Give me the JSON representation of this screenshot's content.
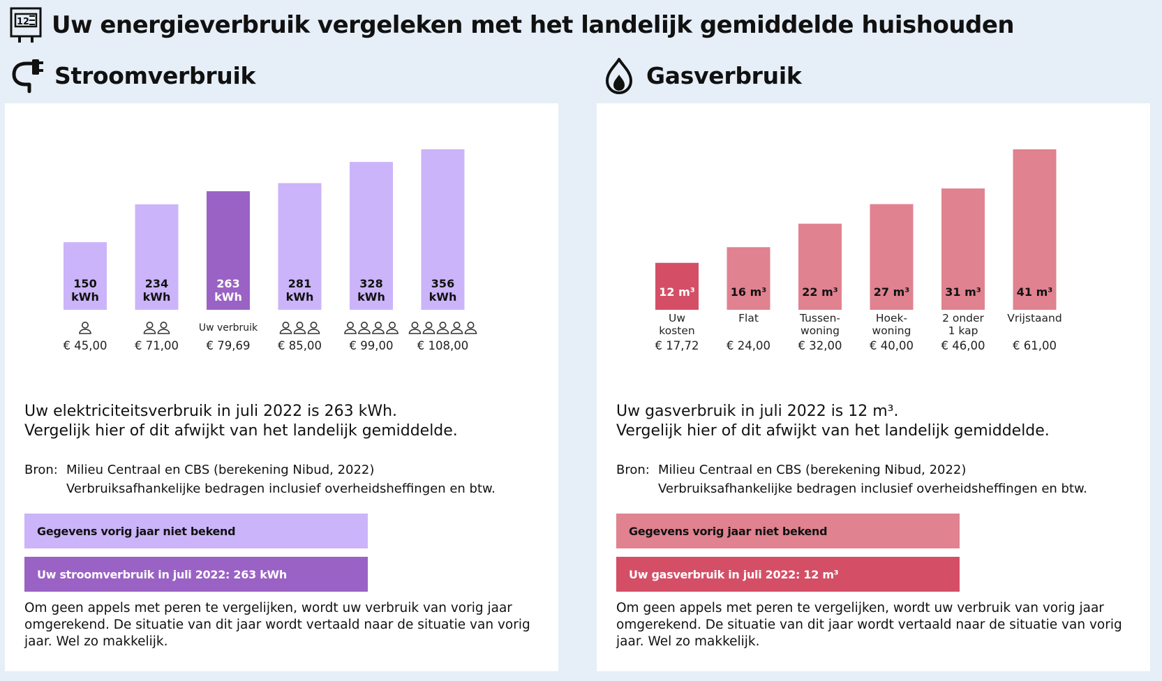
{
  "header": {
    "title": "Uw energieverbruik vergeleken met het landelijk gemiddelde huishouden",
    "icon": "meter-icon"
  },
  "colors": {
    "stroom_light": "#cbb4f9",
    "stroom_dark": "#9a62c4",
    "gas_light": "#e08290",
    "gas_dark": "#d44f66",
    "background": "#e6eef7"
  },
  "stroom": {
    "title": "Stroomverbruik",
    "icon": "plug-icon",
    "summary_line1": "Uw elektriciteitsverbruik in juli 2022 is 263 kWh.",
    "summary_line2": "Vergelijk hier of dit afwijkt van het landelijk gemiddelde.",
    "source_label": "Bron:",
    "source_line1": "Milieu Centraal en CBS (berekening Nibud, 2022)",
    "source_line2": "Verbruiksafhankelijke bedragen inclusief overheidsheffingen en btw.",
    "prev_year_label": "Gegevens vorig jaar niet bekend",
    "current_label": "Uw stroomverbruik in juli 2022: 263 kWh",
    "note": "Om geen appels met peren te vergelijken, wordt uw verbruik van vorig jaar omgerekend. De situatie van dit jaar wordt vertaald naar de situatie van vorig jaar. Wel zo makkelijk."
  },
  "gas": {
    "title": "Gasverbruik",
    "icon": "flame-icon",
    "summary_line1": "Uw gasverbruik in juli 2022 is 12 m³.",
    "summary_line2": "Vergelijk hier of dit afwijkt van het landelijk gemiddelde.",
    "source_label": "Bron:",
    "source_line1": "Milieu Centraal en CBS (berekening Nibud, 2022)",
    "source_line2": "Verbruiksafhankelijke bedragen inclusief overheidsheffingen en btw.",
    "prev_year_label": "Gegevens vorig jaar niet bekend",
    "current_label": "Uw gasverbruik in juli 2022: 12 m³",
    "note": "Om geen appels met peren te vergelijken, wordt uw verbruik van vorig jaar omgerekend. De situatie van dit jaar wordt vertaald naar de situatie van vorig jaar. Wel zo makkelijk."
  },
  "chart_data": [
    {
      "type": "bar",
      "title": "Stroomverbruik",
      "unit": "kWh",
      "values": [
        150,
        234,
        263,
        281,
        328,
        356
      ],
      "value_labels": [
        "150",
        "234",
        "263",
        "281",
        "328",
        "356"
      ],
      "categories": [
        "1 persoon",
        "2 personen",
        "Uw verbruik",
        "3 personen",
        "4 personen",
        "5 personen"
      ],
      "persons": [
        1,
        2,
        0,
        3,
        4,
        5
      ],
      "category_text": [
        "",
        "",
        "Uw verbruik",
        "",
        "",
        ""
      ],
      "costs": [
        "€ 45,00",
        "€ 71,00",
        "€ 79,69",
        "€ 85,00",
        "€ 99,00",
        "€ 108,00"
      ],
      "highlight_index": 2
    },
    {
      "type": "bar",
      "title": "Gasverbruik",
      "unit": "m³",
      "values": [
        12,
        16,
        22,
        27,
        31,
        41
      ],
      "value_labels": [
        "12 m³",
        "16 m³",
        "22 m³",
        "27 m³",
        "31 m³",
        "41 m³"
      ],
      "categories": [
        "Uw kosten",
        "Flat",
        "Tussen-woning",
        "Hoek-woning",
        "2 onder 1 kap",
        "Vrijstaand"
      ],
      "category_lines": [
        [
          "Uw",
          "kosten"
        ],
        [
          "Flat"
        ],
        [
          "Tussen-",
          "woning"
        ],
        [
          "Hoek-",
          "woning"
        ],
        [
          "2 onder",
          "1 kap"
        ],
        [
          "Vrijstaand"
        ]
      ],
      "costs": [
        "€ 17,72",
        "€ 24,00",
        "€ 32,00",
        "€ 40,00",
        "€ 46,00",
        "€ 61,00"
      ],
      "highlight_index": 0
    }
  ]
}
